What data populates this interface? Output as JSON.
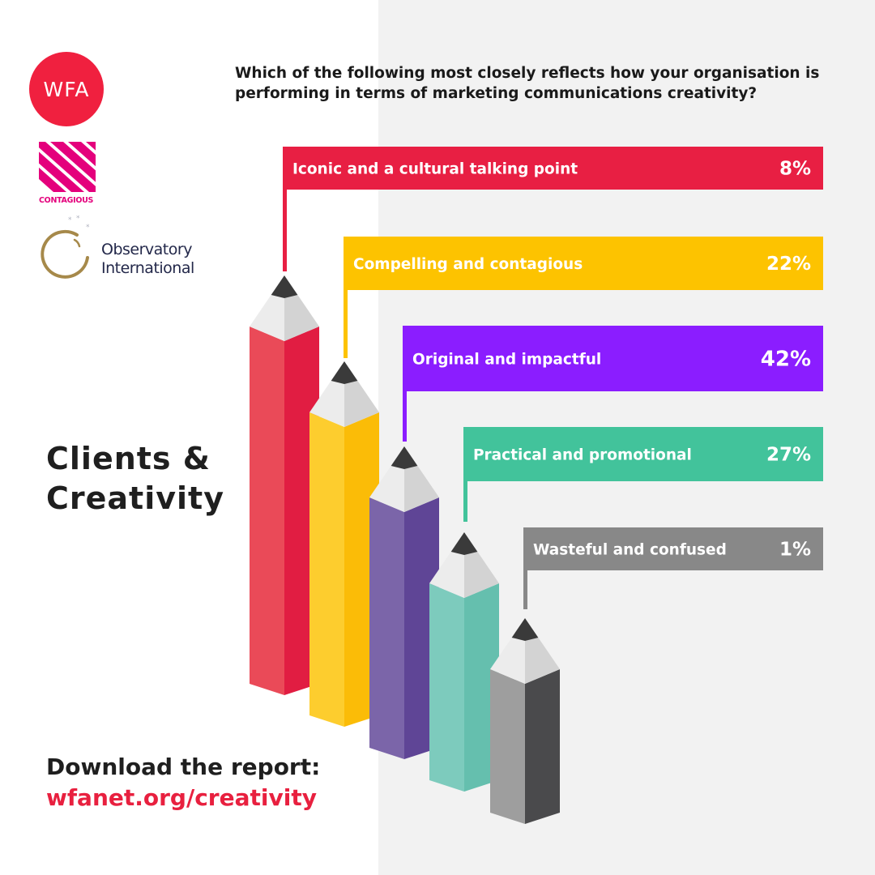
{
  "logos": {
    "wfa": "WFA",
    "contagious": "CONTAGIOUS",
    "observatory_line1": "Observatory",
    "observatory_line2": "International"
  },
  "question": "Which of the following most closely reflects how your organisation is performing in terms of marketing communications creativity?",
  "heading": {
    "line1": "Clients &",
    "line2": "Creativity"
  },
  "download": {
    "label": "Download the report:",
    "url": "wfanet.org/creativity"
  },
  "colors": {
    "wfa_red": "#f0203f",
    "contagious_pink": "#e4007c",
    "observatory_gold": "#a6894a",
    "url_red": "#e8203f"
  },
  "chart_data": {
    "type": "bar",
    "title": "",
    "categories": [
      "Iconic and a cultural talking point",
      "Compelling and contagious",
      "Original and impactful",
      "Practical and promotional",
      "Wasteful and confused"
    ],
    "values": [
      8,
      22,
      42,
      27,
      1
    ],
    "value_labels": [
      "8%",
      "22%",
      "42%",
      "27%",
      "1%"
    ],
    "unit": "%",
    "colors": [
      "#e81f43",
      "#fdc300",
      "#8b1dff",
      "#42c39b",
      "#888888"
    ],
    "pencil_colors": [
      {
        "left": "#ea4a58",
        "right": "#e11d42"
      },
      {
        "left": "#fdcd2e",
        "right": "#fbbc07"
      },
      {
        "left": "#7b65a9",
        "right": "#5f4596"
      },
      {
        "left": "#7dcbbd",
        "right": "#65bfae"
      },
      {
        "left": "#9e9e9e",
        "right": "#4a4a4c"
      }
    ]
  }
}
